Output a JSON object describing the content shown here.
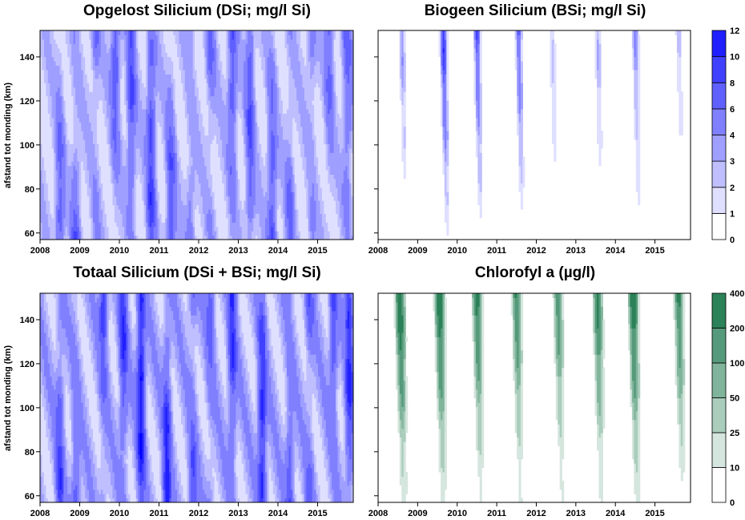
{
  "chart_data": [
    {
      "type": "heatmap",
      "id": "dsi",
      "title": "Opgelost Silicium (DSi; mg/l Si)",
      "xlabel": "",
      "ylabel": "afstand tot monding (km)",
      "x_ticks": [
        "2008",
        "2009",
        "2010",
        "2011",
        "2012",
        "2013",
        "2014",
        "2015"
      ],
      "y_ticks": [
        60,
        80,
        100,
        120,
        140
      ],
      "xlim": [
        2008.0,
        2015.9
      ],
      "ylim": [
        57,
        152
      ],
      "colorbar": null,
      "peaks": [
        {
          "t": 2008.5,
          "value": 5.5
        },
        {
          "t": 2008.9,
          "value": 6.5
        },
        {
          "t": 2009.4,
          "value": 7.0
        },
        {
          "t": 2009.9,
          "value": 7.5
        },
        {
          "t": 2010.3,
          "value": 6.5
        },
        {
          "t": 2010.8,
          "value": 7.5
        },
        {
          "t": 2011.3,
          "value": 7.0
        },
        {
          "t": 2011.8,
          "value": 6.5
        },
        {
          "t": 2012.3,
          "value": 6.5
        },
        {
          "t": 2012.85,
          "value": 6.5
        },
        {
          "t": 2013.3,
          "value": 6.0
        },
        {
          "t": 2013.85,
          "value": 6.5
        },
        {
          "t": 2014.3,
          "value": 6.0
        },
        {
          "t": 2014.85,
          "value": 6.5
        },
        {
          "t": 2015.3,
          "value": 5.5
        },
        {
          "t": 2015.75,
          "value": 5.0
        }
      ]
    },
    {
      "type": "heatmap",
      "id": "bsi",
      "title": "Biogeen Silicium (BSi; mg/l Si)",
      "xlabel": "",
      "ylabel": "",
      "x_ticks": [
        "2008",
        "2009",
        "2010",
        "2011",
        "2012",
        "2013",
        "2014",
        "2015"
      ],
      "y_ticks": [
        60,
        80,
        100,
        120,
        140
      ],
      "xlim": [
        2008.0,
        2015.9
      ],
      "ylim": [
        57,
        152
      ],
      "colorbar": {
        "levels": [
          0,
          1,
          2,
          3,
          4,
          6,
          8,
          10,
          12
        ],
        "color": "#0000ff"
      },
      "peaks": [
        {
          "t": 2008.6,
          "value": 5.0
        },
        {
          "t": 2009.65,
          "value": 11.5
        },
        {
          "t": 2010.5,
          "value": 9.0
        },
        {
          "t": 2011.55,
          "value": 8.0
        },
        {
          "t": 2012.4,
          "value": 3.0
        },
        {
          "t": 2013.55,
          "value": 4.0
        },
        {
          "t": 2014.5,
          "value": 5.5
        },
        {
          "t": 2015.6,
          "value": 3.0
        }
      ]
    },
    {
      "type": "heatmap",
      "id": "tsi",
      "title": "Totaal Silicium (DSi + BSi; mg/l Si)",
      "xlabel": "",
      "ylabel": "afstand tot monding (km)",
      "x_ticks": [
        "2008",
        "2009",
        "2010",
        "2011",
        "2012",
        "2013",
        "2014",
        "2015"
      ],
      "y_ticks": [
        60,
        80,
        100,
        120,
        140
      ],
      "xlim": [
        2008.0,
        2015.9
      ],
      "ylim": [
        57,
        152
      ],
      "colorbar": null,
      "peaks": [
        {
          "t": 2008.5,
          "value": 6.5
        },
        {
          "t": 2008.9,
          "value": 7.0
        },
        {
          "t": 2009.6,
          "value": 10.5
        },
        {
          "t": 2010.1,
          "value": 8.0
        },
        {
          "t": 2010.55,
          "value": 10.5
        },
        {
          "t": 2011.2,
          "value": 9.0
        },
        {
          "t": 2011.85,
          "value": 12.0
        },
        {
          "t": 2012.3,
          "value": 7.5
        },
        {
          "t": 2012.85,
          "value": 8.0
        },
        {
          "t": 2013.6,
          "value": 9.0
        },
        {
          "t": 2014.3,
          "value": 7.5
        },
        {
          "t": 2014.8,
          "value": 10.0
        },
        {
          "t": 2015.4,
          "value": 7.0
        },
        {
          "t": 2015.8,
          "value": 8.5
        }
      ]
    },
    {
      "type": "heatmap",
      "id": "chl",
      "title": "Chlorofyl a (µg/l)",
      "xlabel": "",
      "ylabel": "",
      "x_ticks": [
        "2008",
        "2009",
        "2010",
        "2011",
        "2012",
        "2013",
        "2014",
        "2015"
      ],
      "y_ticks": [
        60,
        80,
        100,
        120,
        140
      ],
      "xlim": [
        2008.0,
        2015.9
      ],
      "ylim": [
        57,
        152
      ],
      "colorbar": {
        "levels": [
          0,
          10,
          25,
          50,
          100,
          200,
          400
        ],
        "color": "#006837"
      },
      "peaks": [
        {
          "t": 2008.55,
          "value": 450
        },
        {
          "t": 2009.55,
          "value": 420
        },
        {
          "t": 2010.5,
          "value": 300
        },
        {
          "t": 2011.5,
          "value": 250
        },
        {
          "t": 2012.55,
          "value": 220
        },
        {
          "t": 2013.55,
          "value": 300
        },
        {
          "t": 2014.45,
          "value": 420
        },
        {
          "t": 2015.6,
          "value": 250
        }
      ]
    }
  ]
}
